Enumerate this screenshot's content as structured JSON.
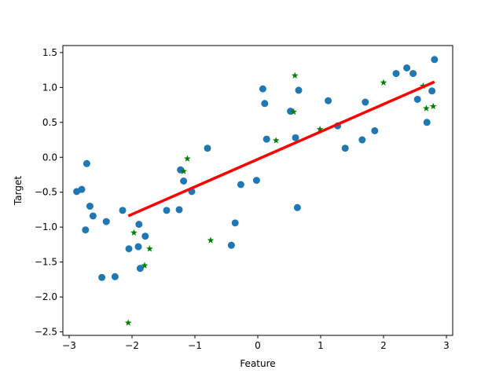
{
  "chart_data": {
    "type": "scatter",
    "xlabel": "Feature",
    "ylabel": "Target",
    "xlim": [
      -3.1,
      3.1
    ],
    "ylim": [
      -2.55,
      1.6
    ],
    "xticks": [
      -3,
      -2,
      -1,
      0,
      1,
      2,
      3
    ],
    "yticks": [
      -2.5,
      -2.0,
      -1.5,
      -1.0,
      -0.5,
      0.0,
      0.5,
      1.0,
      1.5
    ],
    "ytick_labels": [
      "−2.5",
      "−2.0",
      "−1.5",
      "−1.0",
      "−0.5",
      "0.0",
      "0.5",
      "1.0",
      "1.5"
    ],
    "xtick_labels": [
      "−3",
      "−2",
      "−1",
      "0",
      "1",
      "2",
      "3"
    ],
    "grid": false,
    "legend": "none",
    "series": [
      {
        "kind": "scatter-circle",
        "color": "#1f77b4",
        "points": [
          [
            -2.88,
            -0.49
          ],
          [
            -2.8,
            -0.46
          ],
          [
            -2.74,
            -1.04
          ],
          [
            -2.72,
            -0.09
          ],
          [
            -2.67,
            -0.7
          ],
          [
            -2.62,
            -0.84
          ],
          [
            -2.48,
            -1.72
          ],
          [
            -2.41,
            -0.92
          ],
          [
            -2.27,
            -1.71
          ],
          [
            -2.15,
            -0.76
          ],
          [
            -2.05,
            -1.31
          ],
          [
            -1.9,
            -1.28
          ],
          [
            -1.89,
            -0.96
          ],
          [
            -1.87,
            -1.59
          ],
          [
            -1.79,
            -1.13
          ],
          [
            -1.45,
            -0.76
          ],
          [
            -1.25,
            -0.75
          ],
          [
            -1.23,
            -0.18
          ],
          [
            -1.18,
            -0.34
          ],
          [
            -1.05,
            -0.49
          ],
          [
            -0.8,
            0.13
          ],
          [
            -0.42,
            -1.26
          ],
          [
            -0.36,
            -0.94
          ],
          [
            -0.27,
            -0.39
          ],
          [
            -0.02,
            -0.33
          ],
          [
            0.08,
            0.98
          ],
          [
            0.11,
            0.77
          ],
          [
            0.14,
            0.26
          ],
          [
            0.52,
            0.66
          ],
          [
            0.6,
            0.28
          ],
          [
            0.63,
            -0.72
          ],
          [
            0.65,
            0.96
          ],
          [
            1.12,
            0.81
          ],
          [
            1.27,
            0.45
          ],
          [
            1.39,
            0.13
          ],
          [
            1.66,
            0.25
          ],
          [
            1.71,
            0.79
          ],
          [
            1.86,
            0.38
          ],
          [
            2.2,
            1.2
          ],
          [
            2.37,
            1.28
          ],
          [
            2.47,
            1.2
          ],
          [
            2.54,
            0.83
          ],
          [
            2.69,
            0.5
          ],
          [
            2.77,
            0.95
          ],
          [
            2.81,
            1.4
          ]
        ]
      },
      {
        "kind": "scatter-star",
        "color": "#008000",
        "points": [
          [
            -2.06,
            -2.37
          ],
          [
            -1.97,
            -1.08
          ],
          [
            -1.8,
            -1.55
          ],
          [
            -1.72,
            -1.31
          ],
          [
            -1.18,
            -0.2
          ],
          [
            -1.12,
            -0.02
          ],
          [
            -0.75,
            -1.19
          ],
          [
            0.29,
            0.24
          ],
          [
            0.57,
            0.65
          ],
          [
            0.59,
            1.17
          ],
          [
            0.99,
            0.4
          ],
          [
            2.0,
            1.07
          ],
          [
            2.63,
            1.02
          ],
          [
            2.68,
            0.7
          ],
          [
            2.79,
            0.73
          ]
        ]
      },
      {
        "kind": "line",
        "color": "#ff0000",
        "points": [
          [
            -2.06,
            -0.84
          ],
          [
            2.81,
            1.08
          ]
        ]
      }
    ]
  }
}
